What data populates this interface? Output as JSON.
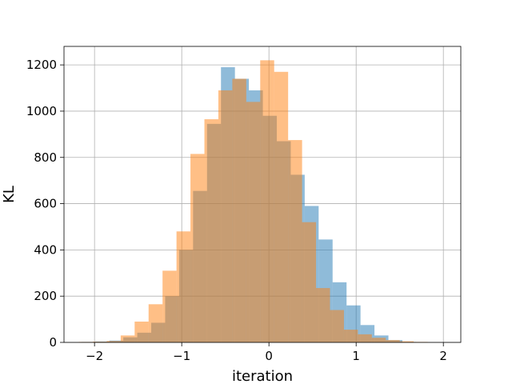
{
  "chart_data": {
    "type": "bar",
    "title": "",
    "xlabel": "iteration",
    "ylabel": "KL",
    "xlim": [
      -2.35,
      2.2
    ],
    "ylim": [
      0,
      1280
    ],
    "xticks": [
      -2,
      -1,
      0,
      1,
      2
    ],
    "yticks": [
      0,
      200,
      400,
      600,
      800,
      1000,
      1200
    ],
    "xtick_labels": [
      "−2",
      "−1",
      "0",
      "1",
      "2"
    ],
    "ytick_labels": [
      "0",
      "200",
      "400",
      "600",
      "800",
      "1000",
      "1200"
    ],
    "grid": true,
    "legend": false,
    "series": [
      {
        "color": "#1f77b4",
        "alpha": 0.5,
        "bin_edges": [
          -2.15,
          -1.99,
          -1.83,
          -1.67,
          -1.51,
          -1.35,
          -1.19,
          -1.03,
          -0.87,
          -0.71,
          -0.55,
          -0.39,
          -0.23,
          -0.07,
          0.09,
          0.25,
          0.41,
          0.57,
          0.73,
          0.89,
          1.05,
          1.21,
          1.37,
          1.53,
          1.69
        ],
        "counts": [
          2,
          4,
          8,
          22,
          42,
          85,
          200,
          400,
          655,
          945,
          1190,
          1140,
          1090,
          980,
          870,
          725,
          590,
          445,
          260,
          160,
          75,
          30,
          10,
          2
        ]
      },
      {
        "color": "#ff7f0e",
        "alpha": 0.5,
        "bin_edges": [
          -2.18,
          -2.02,
          -1.86,
          -1.7,
          -1.54,
          -1.38,
          -1.22,
          -1.06,
          -0.9,
          -0.74,
          -0.58,
          -0.42,
          -0.26,
          -0.1,
          0.06,
          0.22,
          0.38,
          0.54,
          0.7,
          0.86,
          1.02,
          1.18,
          1.34,
          1.5,
          1.66,
          1.82
        ],
        "counts": [
          2,
          3,
          6,
          30,
          90,
          165,
          310,
          480,
          815,
          965,
          1090,
          1140,
          1040,
          1220,
          1170,
          875,
          520,
          235,
          140,
          55,
          35,
          20,
          10,
          5,
          2
        ]
      }
    ]
  }
}
